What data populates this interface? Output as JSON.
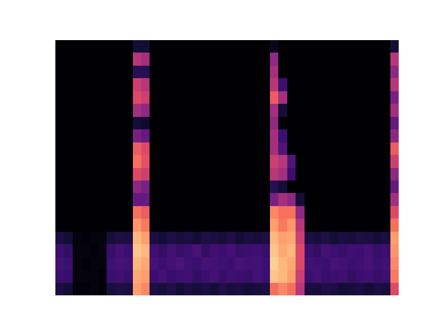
{
  "chart_data": {
    "type": "heatmap",
    "color": "magma",
    "tick_labels": false,
    "grid": false,
    "zlim": [
      0,
      1
    ],
    "cells": [
      [
        0,
        0,
        0,
        0,
        0,
        0,
        0,
        0,
        0,
        0.1,
        0.1,
        0,
        0,
        0,
        0,
        0,
        0,
        0,
        0,
        0,
        0,
        0,
        0,
        0,
        0,
        0.05,
        0,
        0,
        0,
        0,
        0,
        0,
        0,
        0,
        0,
        0,
        0,
        0,
        0,
        0.1
      ],
      [
        0,
        0,
        0,
        0,
        0,
        0,
        0,
        0,
        0,
        0.5,
        0.45,
        0,
        0,
        0,
        0,
        0,
        0,
        0,
        0,
        0,
        0,
        0,
        0,
        0,
        0,
        0.4,
        0,
        0,
        0,
        0,
        0,
        0,
        0,
        0,
        0,
        0,
        0,
        0,
        0,
        0.5
      ],
      [
        0,
        0,
        0,
        0,
        0,
        0,
        0,
        0,
        0,
        0.15,
        0.15,
        0,
        0,
        0,
        0,
        0,
        0,
        0,
        0,
        0,
        0,
        0,
        0,
        0,
        0,
        0.45,
        0,
        0,
        0,
        0,
        0,
        0,
        0,
        0,
        0,
        0,
        0,
        0,
        0,
        0.4
      ],
      [
        0,
        0,
        0,
        0,
        0,
        0,
        0,
        0,
        0,
        0.55,
        0.5,
        0,
        0,
        0,
        0,
        0,
        0,
        0,
        0,
        0,
        0,
        0,
        0,
        0,
        0,
        0.5,
        0.2,
        0,
        0,
        0,
        0,
        0,
        0,
        0,
        0,
        0,
        0,
        0,
        0,
        0.5
      ],
      [
        0,
        0,
        0,
        0,
        0,
        0,
        0,
        0,
        0,
        0.6,
        0.55,
        0,
        0,
        0,
        0,
        0,
        0,
        0,
        0,
        0,
        0,
        0,
        0,
        0,
        0,
        0.65,
        0.45,
        0,
        0,
        0,
        0,
        0,
        0,
        0,
        0,
        0,
        0,
        0,
        0,
        0.35
      ],
      [
        0,
        0,
        0,
        0,
        0,
        0,
        0,
        0,
        0,
        0.45,
        0.4,
        0,
        0,
        0,
        0,
        0,
        0,
        0,
        0,
        0,
        0,
        0,
        0,
        0,
        0,
        0.45,
        0.1,
        0,
        0,
        0,
        0,
        0,
        0,
        0,
        0,
        0,
        0,
        0,
        0,
        0.45
      ],
      [
        0,
        0,
        0,
        0,
        0,
        0,
        0,
        0,
        0,
        0.1,
        0.08,
        0,
        0,
        0,
        0,
        0,
        0,
        0,
        0,
        0,
        0,
        0,
        0,
        0,
        0,
        0.4,
        0,
        0,
        0,
        0,
        0,
        0,
        0,
        0,
        0,
        0,
        0,
        0,
        0,
        0.3
      ],
      [
        0,
        0,
        0,
        0,
        0,
        0,
        0,
        0,
        0,
        0.35,
        0.3,
        0,
        0,
        0,
        0,
        0,
        0,
        0,
        0,
        0,
        0,
        0,
        0,
        0,
        0,
        0.45,
        0.2,
        0,
        0,
        0,
        0,
        0,
        0,
        0,
        0,
        0,
        0,
        0,
        0,
        0.4
      ],
      [
        0,
        0,
        0,
        0,
        0,
        0,
        0,
        0,
        0,
        0.65,
        0.6,
        0,
        0,
        0,
        0,
        0,
        0,
        0,
        0,
        0,
        0,
        0,
        0,
        0,
        0,
        0.45,
        0.25,
        0,
        0,
        0,
        0,
        0,
        0,
        0,
        0,
        0,
        0,
        0,
        0,
        0.65
      ],
      [
        0,
        0,
        0,
        0,
        0,
        0,
        0,
        0,
        0,
        0.7,
        0.62,
        0,
        0,
        0,
        0,
        0,
        0,
        0,
        0,
        0,
        0,
        0,
        0,
        0,
        0,
        0.55,
        0.5,
        0.25,
        0,
        0,
        0,
        0,
        0,
        0,
        0,
        0,
        0,
        0,
        0,
        0.55
      ],
      [
        0,
        0,
        0,
        0,
        0,
        0,
        0,
        0,
        0,
        0.6,
        0.55,
        0,
        0,
        0,
        0,
        0,
        0,
        0,
        0,
        0,
        0,
        0,
        0,
        0,
        0,
        0.5,
        0.45,
        0.2,
        0,
        0,
        0,
        0,
        0,
        0,
        0,
        0,
        0,
        0,
        0,
        0.4
      ],
      [
        0,
        0,
        0,
        0,
        0,
        0,
        0,
        0,
        0,
        0.4,
        0.35,
        0,
        0,
        0,
        0,
        0,
        0,
        0,
        0,
        0,
        0,
        0,
        0,
        0,
        0,
        0.15,
        0.1,
        0,
        0,
        0,
        0,
        0,
        0,
        0,
        0,
        0,
        0,
        0,
        0,
        0.3
      ],
      [
        0,
        0,
        0,
        0,
        0,
        0,
        0,
        0,
        0,
        0.3,
        0.3,
        0,
        0,
        0,
        0,
        0,
        0,
        0,
        0,
        0,
        0,
        0,
        0,
        0,
        0,
        0.35,
        0.45,
        0.4,
        0.1,
        0,
        0,
        0,
        0,
        0,
        0,
        0,
        0,
        0,
        0,
        0.45
      ],
      [
        0,
        0,
        0,
        0,
        0,
        0,
        0,
        0,
        0,
        0.7,
        0.65,
        0,
        0,
        0,
        0,
        0,
        0,
        0,
        0,
        0,
        0,
        0,
        0,
        0,
        0,
        0.75,
        0.7,
        0.7,
        0.4,
        0,
        0,
        0,
        0,
        0,
        0,
        0,
        0,
        0,
        0,
        0.6
      ],
      [
        0,
        0,
        0,
        0,
        0,
        0,
        0,
        0,
        0,
        0.78,
        0.72,
        0,
        0,
        0,
        0,
        0,
        0,
        0,
        0,
        0,
        0,
        0,
        0,
        0,
        0,
        0.8,
        0.72,
        0.78,
        0.5,
        0,
        0,
        0,
        0,
        0,
        0,
        0,
        0,
        0,
        0,
        0.7
      ],
      [
        0.12,
        0.1,
        0.02,
        0.01,
        0.02,
        0.02,
        0.11,
        0.13,
        0.12,
        0.85,
        0.8,
        0.12,
        0.1,
        0.13,
        0.11,
        0.12,
        0.1,
        0.13,
        0.12,
        0.11,
        0.13,
        0.1,
        0.12,
        0.11,
        0.12,
        0.85,
        0.8,
        0.82,
        0.55,
        0.12,
        0.11,
        0.13,
        0.1,
        0.12,
        0.11,
        0.13,
        0.12,
        0.1,
        0.12,
        0.8
      ],
      [
        0.2,
        0.18,
        0.02,
        0.02,
        0.01,
        0.03,
        0.19,
        0.22,
        0.2,
        0.88,
        0.85,
        0.21,
        0.18,
        0.22,
        0.19,
        0.2,
        0.23,
        0.18,
        0.21,
        0.2,
        0.22,
        0.19,
        0.2,
        0.21,
        0.19,
        0.88,
        0.82,
        0.85,
        0.6,
        0.2,
        0.18,
        0.22,
        0.2,
        0.19,
        0.21,
        0.2,
        0.22,
        0.19,
        0.2,
        0.78
      ],
      [
        0.22,
        0.2,
        0.02,
        0.01,
        0.02,
        0.02,
        0.21,
        0.23,
        0.22,
        0.85,
        0.82,
        0.23,
        0.2,
        0.22,
        0.24,
        0.21,
        0.2,
        0.23,
        0.22,
        0.21,
        0.2,
        0.23,
        0.21,
        0.22,
        0.2,
        0.9,
        0.85,
        0.82,
        0.6,
        0.22,
        0.21,
        0.2,
        0.23,
        0.22,
        0.2,
        0.21,
        0.23,
        0.2,
        0.22,
        0.75
      ],
      [
        0.2,
        0.19,
        0.02,
        0.02,
        0.02,
        0.01,
        0.2,
        0.21,
        0.19,
        0.82,
        0.8,
        0.2,
        0.22,
        0.19,
        0.2,
        0.21,
        0.18,
        0.2,
        0.22,
        0.19,
        0.21,
        0.2,
        0.19,
        0.22,
        0.2,
        0.88,
        0.85,
        0.8,
        0.55,
        0.2,
        0.22,
        0.19,
        0.2,
        0.21,
        0.18,
        0.2,
        0.21,
        0.19,
        0.2,
        0.72
      ],
      [
        0.12,
        0.1,
        0.01,
        0.01,
        0.02,
        0.01,
        0.11,
        0.13,
        0.12,
        0.8,
        0.75,
        0.12,
        0.11,
        0.13,
        0.1,
        0.12,
        0.11,
        0.12,
        0.1,
        0.13,
        0.11,
        0.12,
        0.1,
        0.11,
        0.12,
        0.7,
        0.75,
        0.7,
        0.5,
        0.12,
        0.11,
        0.13,
        0.12,
        0.1,
        0.11,
        0.12,
        0.1,
        0.12,
        0.11,
        0.6
      ]
    ]
  }
}
